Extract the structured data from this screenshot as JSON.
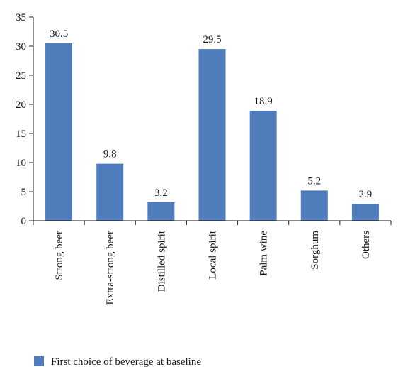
{
  "chart_data": {
    "type": "bar",
    "categories": [
      "Strong beer",
      "Extra-strong beer",
      "Distilled spirit",
      "Local spirit",
      "Palm wine",
      "Sorghum",
      "Others"
    ],
    "series": [
      {
        "name": "First choice of beverage at baseline",
        "values": [
          30.5,
          9.8,
          3.2,
          29.5,
          18.9,
          5.2,
          2.9
        ],
        "data_labels": [
          "30.5",
          "9.8",
          "3.2",
          "29.5",
          "18.9",
          "5.2",
          "2.9"
        ],
        "color": "#4f7cba"
      }
    ],
    "ylim": [
      0,
      35
    ],
    "yticks": [
      0,
      5,
      10,
      15,
      20,
      25,
      30,
      35
    ],
    "ytick_labels": [
      "0",
      "5",
      "10",
      "15",
      "20",
      "25",
      "30",
      "35"
    ],
    "grid": false,
    "legend": "bottom-left",
    "xlabel": "",
    "ylabel": "",
    "title": ""
  }
}
